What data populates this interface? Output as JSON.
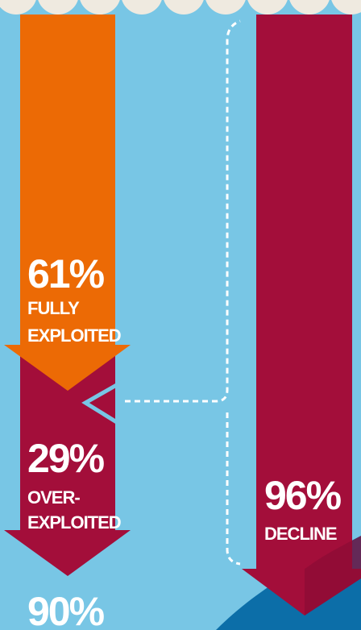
{
  "stats": [
    {
      "value": "61%",
      "label": [
        "FULLY",
        "EXPLOITED"
      ]
    },
    {
      "value": "29%",
      "label": [
        "OVER-",
        "EXPLOITED"
      ]
    },
    {
      "value": "96%",
      "label": [
        "DECLINE"
      ]
    },
    {
      "value": "90%"
    }
  ]
}
